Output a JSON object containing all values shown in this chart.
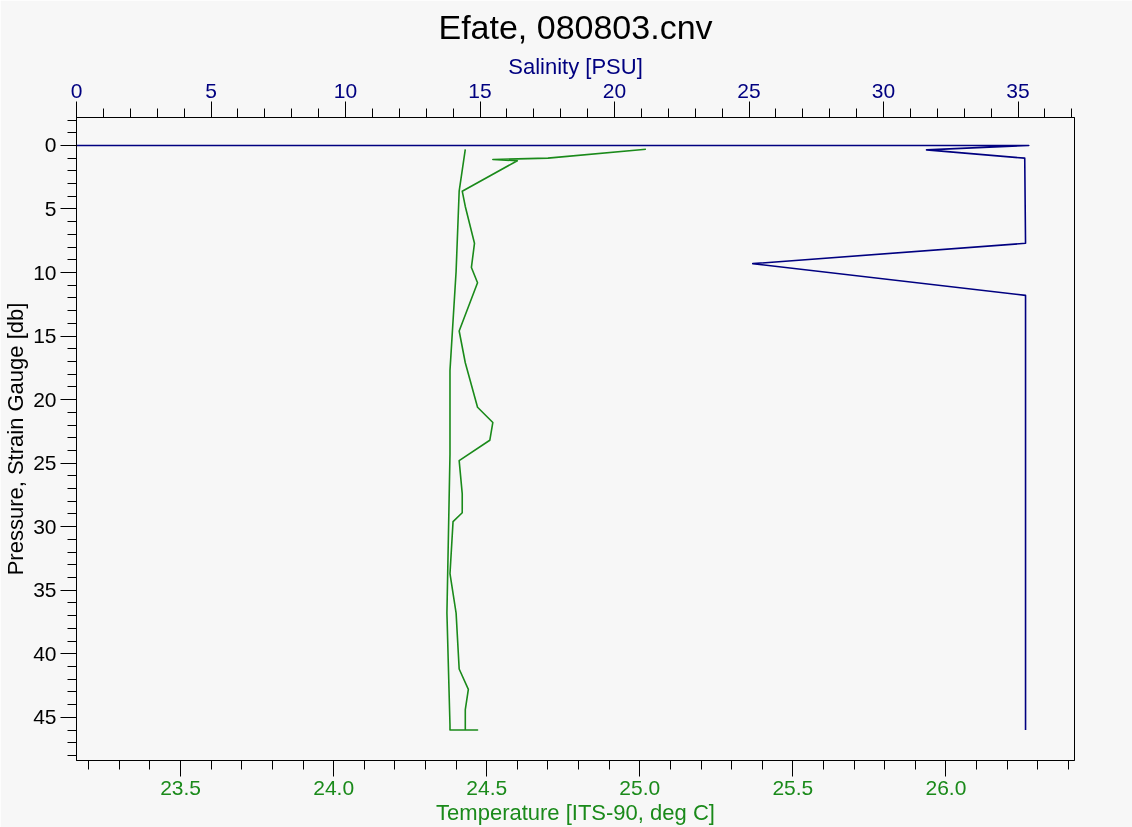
{
  "chart_data": {
    "type": "line",
    "title": "Efate, 080803.cnv",
    "xlabel": "Temperature [ITS-90, deg C]",
    "x2label": "Salinity [PSU]",
    "ylabel": "Pressure, Strain Gauge [db]",
    "xlim": [
      23.16,
      26.42
    ],
    "ylim": [
      48.4,
      -2.2
    ],
    "x2lim": [
      0,
      37.1
    ],
    "xticks": [
      {
        "value": 23.2,
        "label": null
      },
      {
        "value": 23.3,
        "label": null
      },
      {
        "value": 23.4,
        "label": null
      },
      23.5,
      {
        "value": 23.6,
        "label": null
      },
      {
        "value": 23.7,
        "label": null
      },
      {
        "value": 23.8,
        "label": null
      },
      {
        "value": 23.9,
        "label": null
      },
      {
        "value": 24,
        "label": "24.0"
      },
      {
        "value": 24.1,
        "label": null
      },
      {
        "value": 24.2,
        "label": null
      },
      {
        "value": 24.3,
        "label": null
      },
      {
        "value": 24.4,
        "label": null
      },
      24.5,
      {
        "value": 24.6,
        "label": null
      },
      {
        "value": 24.7,
        "label": null
      },
      {
        "value": 24.8,
        "label": null
      },
      {
        "value": 24.9,
        "label": null
      },
      {
        "value": 25,
        "label": "25.0"
      },
      {
        "value": 25.1,
        "label": null
      },
      {
        "value": 25.2,
        "label": null
      },
      {
        "value": 25.3,
        "label": null
      },
      {
        "value": 25.4,
        "label": null
      },
      25.5,
      {
        "value": 25.6,
        "label": null
      },
      {
        "value": 25.7,
        "label": null
      },
      {
        "value": 25.8,
        "label": null
      },
      {
        "value": 25.9,
        "label": null
      },
      {
        "value": 26,
        "label": "26.0"
      },
      {
        "value": 26.1,
        "label": null
      },
      {
        "value": 26.2,
        "label": null
      },
      {
        "value": 26.3,
        "label": null
      },
      {
        "value": 26.4,
        "label": null
      }
    ],
    "x2ticks": [
      0,
      {
        "value": 1,
        "label": null
      },
      {
        "value": 2,
        "label": null
      },
      {
        "value": 3,
        "label": null
      },
      {
        "value": 4,
        "label": null
      },
      5,
      {
        "value": 6,
        "label": null
      },
      {
        "value": 7,
        "label": null
      },
      {
        "value": 8,
        "label": null
      },
      {
        "value": 9,
        "label": null
      },
      10,
      {
        "value": 11,
        "label": null
      },
      {
        "value": 12,
        "label": null
      },
      {
        "value": 13,
        "label": null
      },
      {
        "value": 14,
        "label": null
      },
      15,
      {
        "value": 16,
        "label": null
      },
      {
        "value": 17,
        "label": null
      },
      {
        "value": 18,
        "label": null
      },
      {
        "value": 19,
        "label": null
      },
      20,
      {
        "value": 21,
        "label": null
      },
      {
        "value": 22,
        "label": null
      },
      {
        "value": 23,
        "label": null
      },
      {
        "value": 24,
        "label": null
      },
      25,
      {
        "value": 26,
        "label": null
      },
      {
        "value": 27,
        "label": null
      },
      {
        "value": 28,
        "label": null
      },
      {
        "value": 29,
        "label": null
      },
      30,
      {
        "value": 31,
        "label": null
      },
      {
        "value": 32,
        "label": null
      },
      {
        "value": 33,
        "label": null
      },
      {
        "value": 34,
        "label": null
      },
      35,
      {
        "value": 36,
        "label": null
      },
      {
        "value": 37,
        "label": null
      }
    ],
    "yticks": [
      {
        "value": -2,
        "label": null
      },
      {
        "value": -1,
        "label": null
      },
      0,
      {
        "value": 1,
        "label": null
      },
      {
        "value": 2,
        "label": null
      },
      {
        "value": 3,
        "label": null
      },
      {
        "value": 4,
        "label": null
      },
      5,
      {
        "value": 6,
        "label": null
      },
      {
        "value": 7,
        "label": null
      },
      {
        "value": 8,
        "label": null
      },
      {
        "value": 9,
        "label": null
      },
      10,
      {
        "value": 11,
        "label": null
      },
      {
        "value": 12,
        "label": null
      },
      {
        "value": 13,
        "label": null
      },
      {
        "value": 14,
        "label": null
      },
      15,
      {
        "value": 16,
        "label": null
      },
      {
        "value": 17,
        "label": null
      },
      {
        "value": 18,
        "label": null
      },
      {
        "value": 19,
        "label": null
      },
      20,
      {
        "value": 21,
        "label": null
      },
      {
        "value": 22,
        "label": null
      },
      {
        "value": 23,
        "label": null
      },
      {
        "value": 24,
        "label": null
      },
      25,
      {
        "value": 26,
        "label": null
      },
      {
        "value": 27,
        "label": null
      },
      {
        "value": 28,
        "label": null
      },
      {
        "value": 29,
        "label": null
      },
      30,
      {
        "value": 31,
        "label": null
      },
      {
        "value": 32,
        "label": null
      },
      {
        "value": 33,
        "label": null
      },
      {
        "value": 34,
        "label": null
      },
      35,
      {
        "value": 36,
        "label": null
      },
      {
        "value": 37,
        "label": null
      },
      {
        "value": 38,
        "label": null
      },
      {
        "value": 39,
        "label": null
      },
      40,
      {
        "value": 41,
        "label": null
      },
      {
        "value": 42,
        "label": null
      },
      {
        "value": 43,
        "label": null
      },
      {
        "value": 44,
        "label": null
      },
      45,
      {
        "value": 46,
        "label": null
      },
      {
        "value": 47,
        "label": null
      },
      {
        "value": 48,
        "label": null
      }
    ],
    "grid": false,
    "line_style": "solid",
    "marker": "none",
    "series": [
      {
        "color": "#1a8a1a",
        "x": [
          25.02,
          24.7,
          24.52,
          24.6,
          24.42,
          24.43,
          24.46,
          24.45,
          24.47,
          24.41,
          24.43,
          24.47,
          24.52,
          24.51,
          24.41,
          24.42,
          24.42,
          24.39,
          24.38,
          24.4,
          24.41,
          24.44,
          24.43,
          24.43,
          24.47,
          24.38,
          24.38,
          24.37,
          24.38,
          24.38,
          24.4,
          24.41,
          24.43
        ],
        "values": [
          0.3,
          1.0,
          1.1,
          1.2,
          3.6,
          4.8,
          7.7,
          9.6,
          10.8,
          14.6,
          17.1,
          20.6,
          21.8,
          23.2,
          24.8,
          27.4,
          28.9,
          29.6,
          33.7,
          36.8,
          41.2,
          42.8,
          44.4,
          46.0,
          46.0,
          46.0,
          45.6,
          36.8,
          24.3,
          17.7,
          9.9,
          3.6,
          0.3
        ]
      },
      {
        "color": "#000080",
        "axis": "x2",
        "x": [
          0,
          35.4,
          31.6,
          35.25,
          35.28,
          25.14,
          35.28,
          35.28
        ],
        "values": [
          0,
          0,
          0.35,
          1.0,
          7.7,
          9.3,
          11.8,
          46.0
        ]
      }
    ]
  }
}
